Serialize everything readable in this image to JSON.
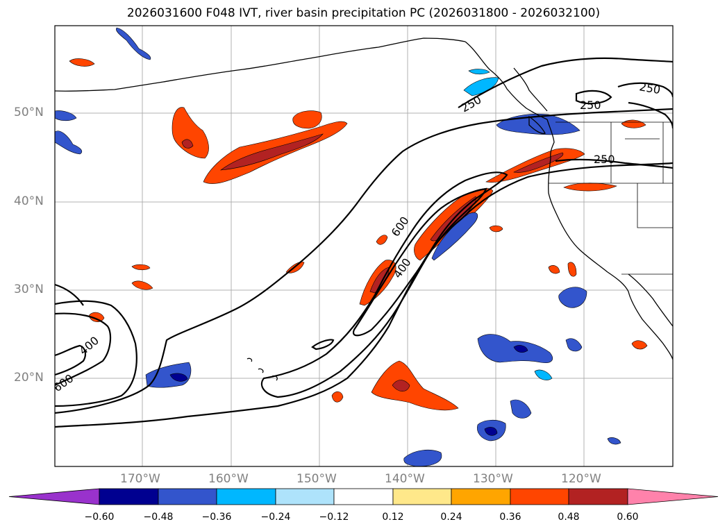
{
  "title": "2026031600 F048 IVT, river basin precipitation PC (2026031800 - 2026032100)",
  "map": {
    "lon_range": [
      -180,
      -110
    ],
    "lat_range": [
      10,
      60
    ],
    "gridlines": true,
    "lat_ticks": [
      {
        "value": 50,
        "label": "50°N"
      },
      {
        "value": 40,
        "label": "40°N"
      },
      {
        "value": 30,
        "label": "30°N"
      },
      {
        "value": 20,
        "label": "20°N"
      }
    ],
    "lon_ticks": [
      {
        "value": -170,
        "label": "170°W"
      },
      {
        "value": -160,
        "label": "160°W"
      },
      {
        "value": -150,
        "label": "150°W"
      },
      {
        "value": -140,
        "label": "140°W"
      },
      {
        "value": -130,
        "label": "130°W"
      },
      {
        "value": -120,
        "label": "120°W"
      }
    ],
    "ivt_contour_labels": [
      "250",
      "250",
      "250",
      "250",
      "600",
      "400",
      "400",
      "600"
    ],
    "line_color": "#000000",
    "grid_color": "#b0b0b0"
  },
  "colorbar": {
    "extend": "both",
    "under_color": "#9932cc",
    "over_color": "#ff82ab",
    "colors": [
      "#000090",
      "#3355cc",
      "#00b7ff",
      "#aee3fb",
      "#ffffff",
      "#ffe88a",
      "#ffa500",
      "#ff4500",
      "#b22222"
    ],
    "tick_labels": [
      "−0.60",
      "−0.48",
      "−0.36",
      "−0.24",
      "−0.12",
      "0.12",
      "0.24",
      "0.36",
      "0.48",
      "0.60"
    ]
  },
  "colors": {
    "pos_weak": "#ffe88a",
    "pos_mid": "#ffa500",
    "pos_strong": "#ff4500",
    "pos_max": "#b22222",
    "neg_weak": "#aee3fb",
    "neg_mid": "#00b7ff",
    "neg_strong": "#3355cc",
    "neg_max": "#000090"
  }
}
